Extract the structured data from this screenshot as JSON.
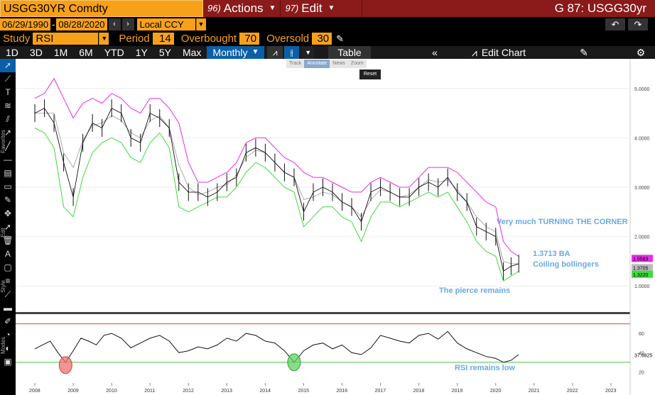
{
  "header": {
    "ticker": "USGG30YR Comdty",
    "actions_num": "96)",
    "actions_label": "Actions",
    "edit_num": "97)",
    "edit_label": "Edit",
    "title_right": "G 87: USGG30yr"
  },
  "dates": {
    "start": "06/29/1990",
    "end": "08/28/2020",
    "currency": "Local CCY"
  },
  "study": {
    "label": "Study",
    "name": "RSI",
    "period_label": "Period",
    "period": "14",
    "overbought_label": "Overbought",
    "overbought": "70",
    "oversold_label": "Oversold",
    "oversold": "30"
  },
  "toolbar": {
    "timeframes": [
      "1D",
      "3D",
      "1M",
      "6M",
      "YTD",
      "1Y",
      "5Y",
      "Max"
    ],
    "frequency": "Monthly",
    "table_label": "Table",
    "edit_chart_label": "Edit Chart"
  },
  "mini_tools": {
    "track": "Track",
    "annotate": "Annotate",
    "news": "News",
    "zoom": "Zoom",
    "reset": "Reset"
  },
  "left_labels": {
    "favorites": "Favorites",
    "edit": "Edit",
    "style": "Style",
    "modes": "Modes"
  },
  "annotations": {
    "turning": "Very much TURNING THE CORNER",
    "ba": "1.3713 BA",
    "coiling": "Coiling bollingers",
    "pierce": "The pierce remains",
    "rsi_low": "RSI remains low"
  },
  "price_tags": {
    "upper": "1.5583",
    "last": "1.3705",
    "lower": "1.3220"
  },
  "rsi_tag": "37.6825",
  "chart_data": {
    "type": "line",
    "price_axis": {
      "ticks": [
        "5.0000",
        "4.0000",
        "3.0000",
        "2.0000",
        "1.0000"
      ],
      "values": [
        5,
        4,
        3,
        2,
        1
      ]
    },
    "rsi_axis": {
      "ticks": [
        "60",
        "40",
        "20"
      ],
      "values": [
        60,
        40,
        20
      ],
      "overbought": 70,
      "oversold": 30
    },
    "x_ticks": [
      "2008",
      "2009",
      "2010",
      "2011",
      "2012",
      "2013",
      "2014",
      "2015",
      "2016",
      "2017",
      "2018",
      "2019",
      "2020",
      "2021",
      "2022",
      "2023"
    ],
    "colors": {
      "price": "#111111",
      "upper_band": "#e82be8",
      "lower_band": "#3ddc3d",
      "middle_band": "#999999",
      "overbought_line": "#e04040",
      "oversold_line": "#4ac24a",
      "annotation": "#6aa9e6"
    },
    "series": [
      {
        "name": "",
        "x": [
          2008.0,
          2008.25,
          2008.5,
          2008.75,
          2009.0,
          2009.25,
          2009.5,
          2009.75,
          2010.0,
          2010.25,
          2010.5,
          2010.75,
          2011.0,
          2011.25,
          2011.5,
          2011.75,
          2012.0,
          2012.25,
          2012.5,
          2012.75,
          2013.0,
          2013.25,
          2013.5,
          2013.75,
          2014.0,
          2014.25,
          2014.5,
          2014.75,
          2015.0,
          2015.25,
          2015.5,
          2015.75,
          2016.0,
          2016.25,
          2016.5,
          2016.75,
          2017.0,
          2017.25,
          2017.5,
          2017.75,
          2018.0,
          2018.25,
          2018.5,
          2018.75,
          2019.0,
          2019.25,
          2019.5,
          2019.75,
          2020.0,
          2020.2,
          2020.4,
          2020.6
        ],
        "values": [
          4.5,
          4.6,
          4.3,
          3.5,
          2.8,
          3.9,
          4.3,
          4.2,
          4.6,
          4.5,
          4.0,
          3.9,
          4.5,
          4.4,
          4.2,
          3.1,
          2.9,
          2.9,
          2.8,
          2.9,
          3.1,
          3.2,
          3.7,
          3.8,
          3.7,
          3.5,
          3.3,
          3.2,
          2.5,
          2.9,
          3.0,
          2.9,
          2.7,
          2.6,
          2.3,
          2.9,
          3.0,
          2.9,
          2.8,
          2.8,
          3.0,
          3.1,
          3.0,
          3.2,
          2.9,
          2.7,
          2.2,
          2.1,
          2.0,
          1.3,
          1.4,
          1.45
        ]
      },
      {
        "name": "",
        "x": [
          2008.0,
          2008.25,
          2008.5,
          2008.75,
          2009.0,
          2009.25,
          2009.5,
          2009.75,
          2010.0,
          2010.25,
          2010.5,
          2010.75,
          2011.0,
          2011.25,
          2011.5,
          2011.75,
          2012.0,
          2012.25,
          2012.5,
          2012.75,
          2013.0,
          2013.25,
          2013.5,
          2013.75,
          2014.0,
          2014.25,
          2014.5,
          2014.75,
          2015.0,
          2015.25,
          2015.5,
          2015.75,
          2016.0,
          2016.25,
          2016.5,
          2016.75,
          2017.0,
          2017.25,
          2017.5,
          2017.75,
          2018.0,
          2018.25,
          2018.5,
          2018.75,
          2019.0,
          2019.25,
          2019.5,
          2019.75,
          2020.0,
          2020.2,
          2020.4,
          2020.6
        ],
        "values": [
          4.8,
          4.9,
          5.2,
          4.8,
          4.4,
          4.7,
          4.8,
          4.7,
          4.9,
          4.8,
          4.6,
          4.5,
          4.8,
          4.8,
          4.6,
          4.3,
          3.5,
          3.1,
          3.1,
          3.2,
          3.3,
          3.5,
          3.9,
          4.0,
          4.0,
          3.8,
          3.6,
          3.5,
          3.3,
          3.2,
          3.2,
          3.1,
          3.0,
          2.9,
          2.9,
          3.1,
          3.2,
          3.1,
          3.0,
          3.0,
          3.2,
          3.4,
          3.4,
          3.4,
          3.3,
          3.1,
          2.9,
          2.7,
          2.6,
          1.9,
          1.7,
          1.6
        ]
      },
      {
        "name": "",
        "x": [
          2008.0,
          2008.25,
          2008.5,
          2008.75,
          2009.0,
          2009.25,
          2009.5,
          2009.75,
          2010.0,
          2010.25,
          2010.5,
          2010.75,
          2011.0,
          2011.25,
          2011.5,
          2011.75,
          2012.0,
          2012.25,
          2012.5,
          2012.75,
          2013.0,
          2013.25,
          2013.5,
          2013.75,
          2014.0,
          2014.25,
          2014.5,
          2014.75,
          2015.0,
          2015.25,
          2015.5,
          2015.75,
          2016.0,
          2016.25,
          2016.5,
          2016.75,
          2017.0,
          2017.25,
          2017.5,
          2017.75,
          2018.0,
          2018.25,
          2018.5,
          2018.75,
          2019.0,
          2019.25,
          2019.5,
          2019.75,
          2020.0,
          2020.2,
          2020.4,
          2020.6
        ],
        "values": [
          4.2,
          4.1,
          3.8,
          2.6,
          2.4,
          3.2,
          3.7,
          3.9,
          4.0,
          3.9,
          3.6,
          3.5,
          3.9,
          4.1,
          3.8,
          2.6,
          2.5,
          2.6,
          2.7,
          2.8,
          2.8,
          3.0,
          3.3,
          3.5,
          3.4,
          3.2,
          3.0,
          2.9,
          2.2,
          2.4,
          2.6,
          2.6,
          2.4,
          2.3,
          1.9,
          2.4,
          2.7,
          2.7,
          2.6,
          2.7,
          2.8,
          2.9,
          2.8,
          2.9,
          2.6,
          2.3,
          1.9,
          1.7,
          1.6,
          1.1,
          1.2,
          1.3
        ]
      }
    ],
    "rsi": {
      "x": [
        2008.0,
        2008.2,
        2008.4,
        2008.6,
        2008.8,
        2009.0,
        2009.2,
        2009.4,
        2009.6,
        2009.8,
        2010.0,
        2010.25,
        2010.5,
        2010.75,
        2011.0,
        2011.25,
        2011.5,
        2011.75,
        2012.0,
        2012.25,
        2012.5,
        2012.75,
        2013.0,
        2013.25,
        2013.5,
        2013.75,
        2014.0,
        2014.25,
        2014.5,
        2014.75,
        2015.0,
        2015.25,
        2015.5,
        2015.75,
        2016.0,
        2016.25,
        2016.5,
        2016.75,
        2017.0,
        2017.25,
        2017.5,
        2017.75,
        2018.0,
        2018.25,
        2018.5,
        2018.75,
        2019.0,
        2019.25,
        2019.5,
        2019.75,
        2020.0,
        2020.2,
        2020.4,
        2020.6
      ],
      "values": [
        44,
        48,
        52,
        40,
        30,
        42,
        55,
        52,
        48,
        58,
        60,
        55,
        45,
        50,
        55,
        58,
        52,
        40,
        42,
        46,
        44,
        48,
        55,
        52,
        60,
        58,
        52,
        50,
        42,
        30,
        42,
        48,
        50,
        44,
        48,
        40,
        38,
        45,
        58,
        55,
        52,
        50,
        58,
        60,
        54,
        62,
        50,
        44,
        40,
        36,
        34,
        30,
        32,
        38
      ]
    }
  }
}
